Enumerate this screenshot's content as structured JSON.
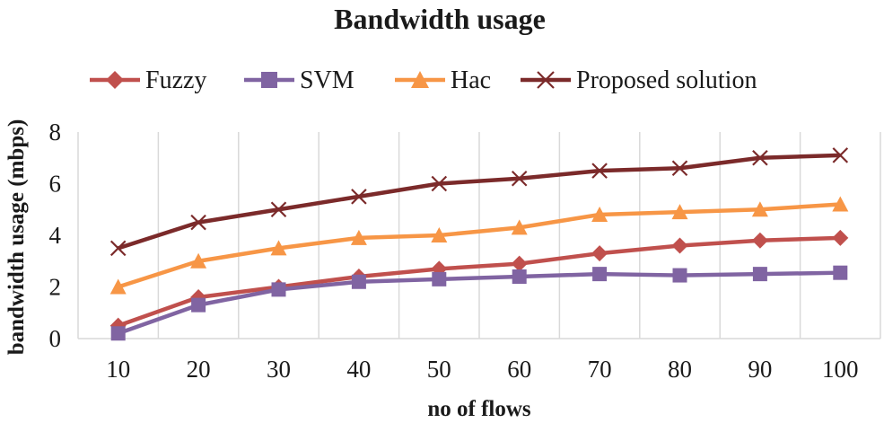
{
  "chart_data": {
    "type": "line",
    "title": "Bandwidth usage",
    "xlabel": "no of flows",
    "ylabel": "bandwidth usage (mbps)",
    "categories": [
      "10",
      "20",
      "30",
      "40",
      "50",
      "60",
      "70",
      "80",
      "90",
      "100"
    ],
    "ylim": [
      0,
      8
    ],
    "yticks": [
      0,
      2,
      4,
      6,
      8
    ],
    "grid": "vertical",
    "legend_position": "top",
    "series": [
      {
        "name": "Fuzzy",
        "color": "#c0504d",
        "marker": "diamond",
        "values": [
          0.5,
          1.6,
          2.0,
          2.4,
          2.7,
          2.9,
          3.3,
          3.6,
          3.8,
          3.9
        ]
      },
      {
        "name": "SVM",
        "color": "#8064a2",
        "marker": "square",
        "values": [
          0.2,
          1.3,
          1.9,
          2.2,
          2.3,
          2.4,
          2.5,
          2.45,
          2.5,
          2.55
        ]
      },
      {
        "name": "Hac",
        "color": "#f79646",
        "marker": "triangle",
        "values": [
          2.0,
          3.0,
          3.5,
          3.9,
          4.0,
          4.3,
          4.8,
          4.9,
          5.0,
          5.2
        ]
      },
      {
        "name": "Proposed solution",
        "color": "#7b2a2a",
        "marker": "x",
        "values": [
          3.5,
          4.5,
          5.0,
          5.5,
          6.0,
          6.2,
          6.5,
          6.6,
          7.0,
          7.1
        ]
      }
    ]
  }
}
